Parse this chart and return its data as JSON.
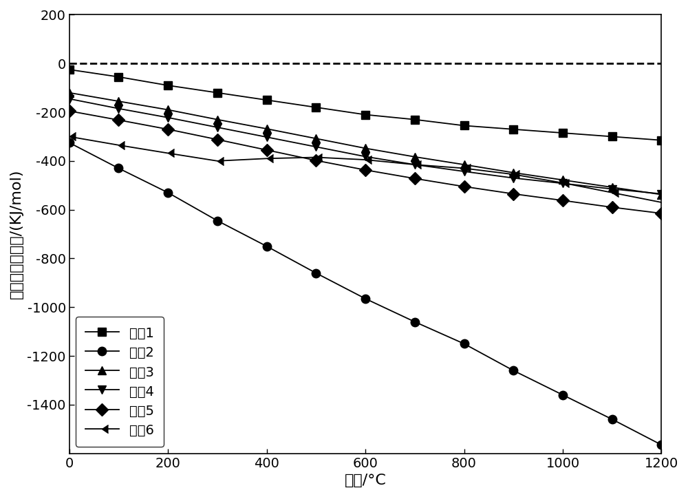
{
  "title": "",
  "xlabel": "温度/°C",
  "ylabel": "吉布斯自由能变/(KJ/mol)",
  "xlim": [
    0,
    1200
  ],
  "ylim": [
    -1600,
    200
  ],
  "yticks": [
    200,
    0,
    -200,
    -400,
    -600,
    -800,
    -1000,
    -1200,
    -1400
  ],
  "xticks": [
    0,
    200,
    400,
    600,
    800,
    1000,
    1200
  ],
  "x": [
    0,
    100,
    200,
    300,
    400,
    500,
    600,
    700,
    800,
    900,
    1000,
    1100,
    1200
  ],
  "reaction1_y": [
    -25,
    -55,
    -90,
    -120,
    -150,
    -180,
    -210,
    -230,
    -255,
    -270,
    -285,
    -300,
    -315
  ],
  "reaction2_y": [
    -325,
    -430,
    -530,
    -645,
    -750,
    -860,
    -965,
    -1060,
    -1150,
    -1260,
    -1360,
    -1460,
    -1565
  ],
  "reaction3_y": [
    -120,
    -155,
    -190,
    -230,
    -268,
    -308,
    -348,
    -383,
    -415,
    -448,
    -478,
    -508,
    -538
  ],
  "reaction4_y": [
    -145,
    -185,
    -222,
    -262,
    -302,
    -342,
    -382,
    -415,
    -443,
    -470,
    -492,
    -515,
    -535
  ],
  "reaction5_y": [
    -195,
    -232,
    -270,
    -312,
    -355,
    -398,
    -437,
    -472,
    -505,
    -535,
    -562,
    -590,
    -615
  ],
  "reaction6_y": [
    -300,
    -335,
    -368,
    -400,
    -390,
    -385,
    -395,
    -415,
    -430,
    -455,
    -490,
    -530,
    -570
  ],
  "labels": [
    "反共1",
    "反共2",
    "反共3",
    "反共4",
    "反共5",
    "反共6"
  ],
  "line_color": "#000000",
  "dashed_y": 0,
  "background_color": "#ffffff",
  "legend_loc": "lower left",
  "font_size": 16,
  "tick_fontsize": 14,
  "legend_fontsize": 14,
  "marker_size": 9,
  "linewidth": 1.3
}
